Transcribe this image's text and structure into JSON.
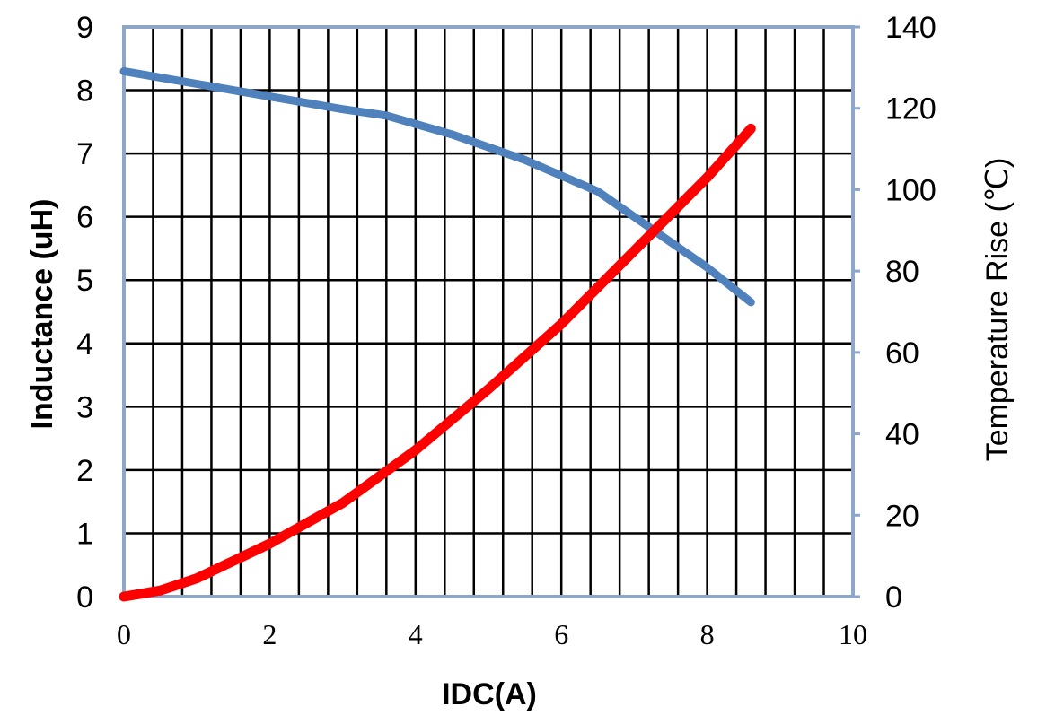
{
  "chart_data": {
    "type": "line",
    "title": "",
    "xlabel": "IDC(A)",
    "ylabel_left": "Inductance (uH)",
    "ylabel_right": "Temperature Rise (℃)",
    "xlim": [
      0,
      10
    ],
    "ylim_left": [
      0,
      9
    ],
    "ylim_right": [
      0,
      140
    ],
    "x_ticks": [
      "0",
      "2",
      "4",
      "6",
      "8",
      "10"
    ],
    "y_ticks_left": [
      "0",
      "1",
      "2",
      "3",
      "4",
      "5",
      "6",
      "7",
      "8",
      "9"
    ],
    "y_ticks_right": [
      "0",
      "20",
      "40",
      "60",
      "80",
      "100",
      "120",
      "140"
    ],
    "grid": true,
    "colors": {
      "inductance": "#4f81bd",
      "temperature": "#ff0000",
      "grid": "#000000",
      "frame": "#8ea7c9"
    },
    "series": [
      {
        "axis": "left",
        "x": [
          0,
          1,
          2,
          3,
          3.6,
          4.5,
          5.5,
          6.5,
          7,
          7.5,
          8,
          8.6
        ],
        "values": [
          8.3,
          8.1,
          7.9,
          7.7,
          7.6,
          7.3,
          6.9,
          6.4,
          6.0,
          5.6,
          5.2,
          4.65
        ]
      },
      {
        "axis": "right",
        "x": [
          0,
          0.5,
          1,
          2,
          3,
          4,
          5,
          6,
          7,
          8,
          8.6
        ],
        "values": [
          0,
          1.5,
          4.5,
          13,
          23,
          36,
          51,
          67,
          85,
          103,
          115
        ]
      }
    ]
  }
}
